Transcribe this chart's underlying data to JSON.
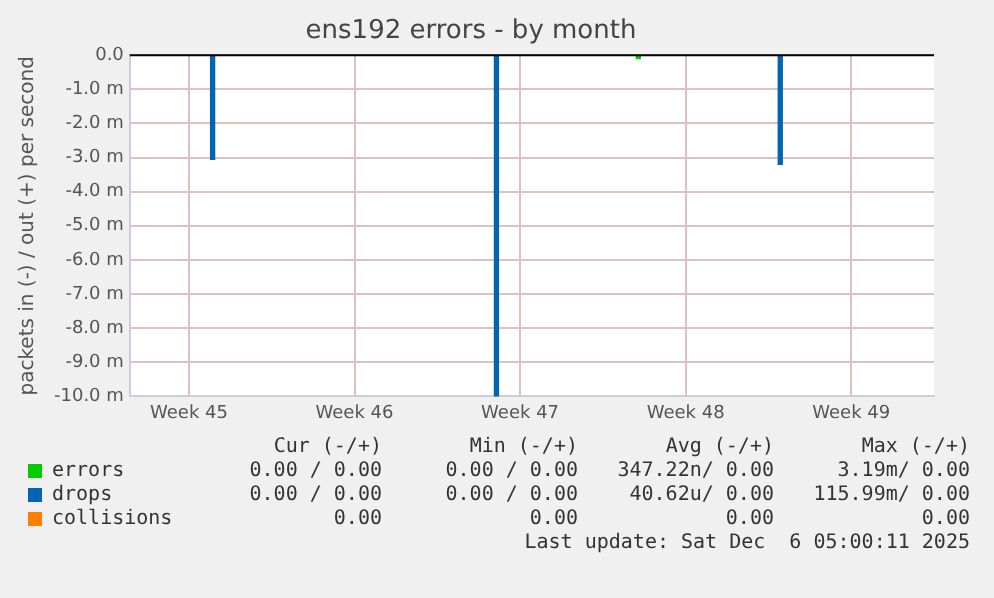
{
  "chart_data": {
    "type": "bar",
    "title": "ens192 errors - by month",
    "ylabel": "packets in (-) / out (+) per second",
    "categories": [
      null,
      null,
      "Week 45",
      null,
      null,
      null,
      null,
      null,
      null,
      "Week 46",
      null,
      null,
      null,
      null,
      null,
      null,
      "Week 47",
      null,
      null,
      null,
      null,
      null,
      null,
      "Week 48",
      null,
      null,
      null,
      null,
      null,
      null,
      "Week 49",
      null,
      null,
      null
    ],
    "ylim": [
      -10,
      0
    ],
    "yticks": [
      {
        "value": -10,
        "label": "-10.0 m"
      },
      {
        "value": -9,
        "label": "-9.0 m"
      },
      {
        "value": -8,
        "label": "-8.0 m"
      },
      {
        "value": -7,
        "label": "-7.0 m"
      },
      {
        "value": -6,
        "label": "-6.0 m"
      },
      {
        "value": -5,
        "label": "-5.0 m"
      },
      {
        "value": -4,
        "label": "-4.0 m"
      },
      {
        "value": -3,
        "label": "-3.0 m"
      },
      {
        "value": -2,
        "label": "-2.0 m"
      },
      {
        "value": -1,
        "label": "-1.0 m"
      },
      {
        "value": 0,
        "label": "0.0"
      }
    ],
    "grid": true,
    "legend": "bottom",
    "series": [
      {
        "name": "errors",
        "color": "#00cc00",
        "values": [
          null,
          null,
          null,
          null,
          null,
          null,
          null,
          null,
          null,
          null,
          null,
          null,
          null,
          null,
          null,
          null,
          null,
          null,
          null,
          null,
          null,
          -0.1,
          null,
          null,
          null,
          null,
          null,
          null,
          null,
          null,
          null,
          null,
          null,
          null
        ]
      },
      {
        "name": "drops",
        "color": "#0066b3",
        "values": [
          null,
          null,
          null,
          -3.05,
          null,
          null,
          null,
          null,
          null,
          null,
          null,
          null,
          null,
          null,
          null,
          -10,
          null,
          null,
          null,
          null,
          null,
          null,
          null,
          null,
          null,
          null,
          null,
          -3.2,
          null,
          null,
          null,
          null,
          null,
          null
        ]
      },
      {
        "name": "collisions",
        "color": "#ff8000",
        "values": [
          null,
          null,
          null,
          null,
          null,
          null,
          null,
          null,
          null,
          null,
          null,
          null,
          null,
          null,
          null,
          null,
          null,
          null,
          null,
          null,
          null,
          null,
          null,
          null,
          null,
          null,
          null,
          null,
          null,
          null,
          null,
          null,
          null,
          null
        ]
      }
    ],
    "ref_lines": [
      {
        "axis": "y",
        "value": 0,
        "color": "#000000"
      }
    ],
    "annotations": [
      "Cur (-/+)",
      "Min (-/+)",
      "Avg (-/+)",
      "Max (-/+)",
      "0.00 / 0.00",
      "0.00 / 0.00",
      "347.22n/ 0.00",
      "3.19m/ 0.00",
      "0.00 / 0.00",
      "0.00 / 0.00",
      "40.62u/ 0.00",
      "115.99m/ 0.00",
      "0.00",
      "0.00",
      "0.00",
      "0.00",
      "Last update: Sat Dec  6 05:00:11 2025"
    ]
  }
}
